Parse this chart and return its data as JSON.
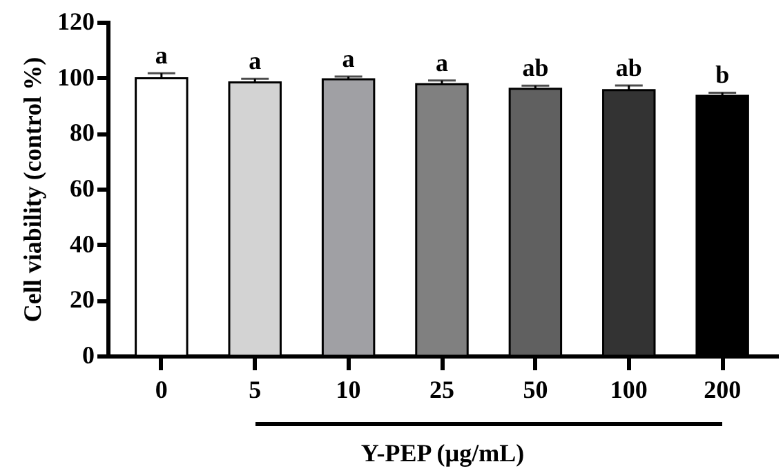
{
  "chart_data": {
    "type": "bar",
    "xlabel": "Y-PEP (µg/mL)",
    "ylabel": "Cell viability (control %)",
    "categories": [
      "0",
      "5",
      "10",
      "25",
      "50",
      "100",
      "200"
    ],
    "values": [
      99.8,
      98.3,
      99.4,
      97.7,
      96.0,
      95.5,
      93.5
    ],
    "errors": [
      1.8,
      1.3,
      1.0,
      1.3,
      1.1,
      1.7,
      1.1
    ],
    "colors": [
      "#ffffff",
      "#d3d3d3",
      "#a0a0a4",
      "#808080",
      "#606060",
      "#333333",
      "#000000"
    ],
    "ylim": [
      0,
      120
    ],
    "yticks": [
      0,
      20,
      40,
      60,
      80,
      100,
      120
    ],
    "annotations": [
      {
        "text": "a",
        "x": "0",
        "y": 101.6
      },
      {
        "text": "a",
        "x": "5",
        "y": 99.6
      },
      {
        "text": "a",
        "x": "10",
        "y": 100.4
      },
      {
        "text": "a",
        "x": "25",
        "y": 99.0
      },
      {
        "text": "ab",
        "x": "50",
        "y": 97.1
      },
      {
        "text": "ab",
        "x": "100",
        "y": 97.2
      },
      {
        "text": "b",
        "x": "200",
        "y": 94.6
      }
    ]
  }
}
